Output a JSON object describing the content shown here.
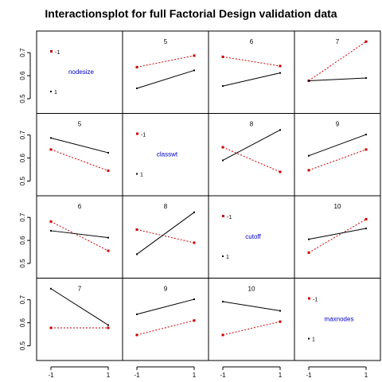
{
  "chart_data": {
    "type": "line",
    "title": "Interactionsplot for full Factorial Design validation data",
    "xlabel": "",
    "ylabel": "",
    "variables": [
      "nodesize",
      "classwt",
      "cutoff",
      "maxnodes"
    ],
    "x_levels": [
      -1,
      1
    ],
    "x_tick_labels": [
      "-1",
      "1"
    ],
    "ylim": [
      0.45,
      0.78
    ],
    "y_ticks": [
      0.5,
      0.6,
      0.7
    ],
    "y_tick_labels": [
      "0.5",
      "0.6",
      "0.7"
    ],
    "grid": false,
    "series_colors": {
      "minus": "#cc0000",
      "plus": "#000000"
    },
    "legend_labels": {
      "minus": "-1",
      "plus": "1"
    },
    "panels": [
      {
        "row": 0,
        "col": 1,
        "label": "5",
        "minus": [
          0.637,
          0.687
        ],
        "plus": [
          0.545,
          0.623
        ]
      },
      {
        "row": 0,
        "col": 2,
        "label": "6",
        "minus": [
          0.682,
          0.642
        ],
        "plus": [
          0.555,
          0.612
        ]
      },
      {
        "row": 0,
        "col": 3,
        "label": "7",
        "minus": [
          0.578,
          0.748
        ],
        "plus": [
          0.578,
          0.59
        ]
      },
      {
        "row": 1,
        "col": 0,
        "label": "5",
        "minus": [
          0.637,
          0.545
        ],
        "plus": [
          0.687,
          0.623
        ]
      },
      {
        "row": 1,
        "col": 2,
        "label": "8",
        "minus": [
          0.647,
          0.54
        ],
        "plus": [
          0.59,
          0.722
        ]
      },
      {
        "row": 1,
        "col": 3,
        "label": "9",
        "minus": [
          0.547,
          0.637
        ],
        "plus": [
          0.61,
          0.702
        ]
      },
      {
        "row": 2,
        "col": 0,
        "label": "6",
        "minus": [
          0.682,
          0.555
        ],
        "plus": [
          0.642,
          0.612
        ]
      },
      {
        "row": 2,
        "col": 1,
        "label": "8",
        "minus": [
          0.647,
          0.59
        ],
        "plus": [
          0.54,
          0.722
        ]
      },
      {
        "row": 2,
        "col": 3,
        "label": "10",
        "minus": [
          0.547,
          0.692
        ],
        "plus": [
          0.605,
          0.652
        ]
      },
      {
        "row": 3,
        "col": 0,
        "label": "7",
        "minus": [
          0.578,
          0.578
        ],
        "plus": [
          0.748,
          0.59
        ]
      },
      {
        "row": 3,
        "col": 1,
        "label": "9",
        "minus": [
          0.547,
          0.61
        ],
        "plus": [
          0.637,
          0.702
        ]
      },
      {
        "row": 3,
        "col": 2,
        "label": "10",
        "minus": [
          0.547,
          0.605
        ],
        "plus": [
          0.692,
          0.652
        ]
      }
    ]
  }
}
